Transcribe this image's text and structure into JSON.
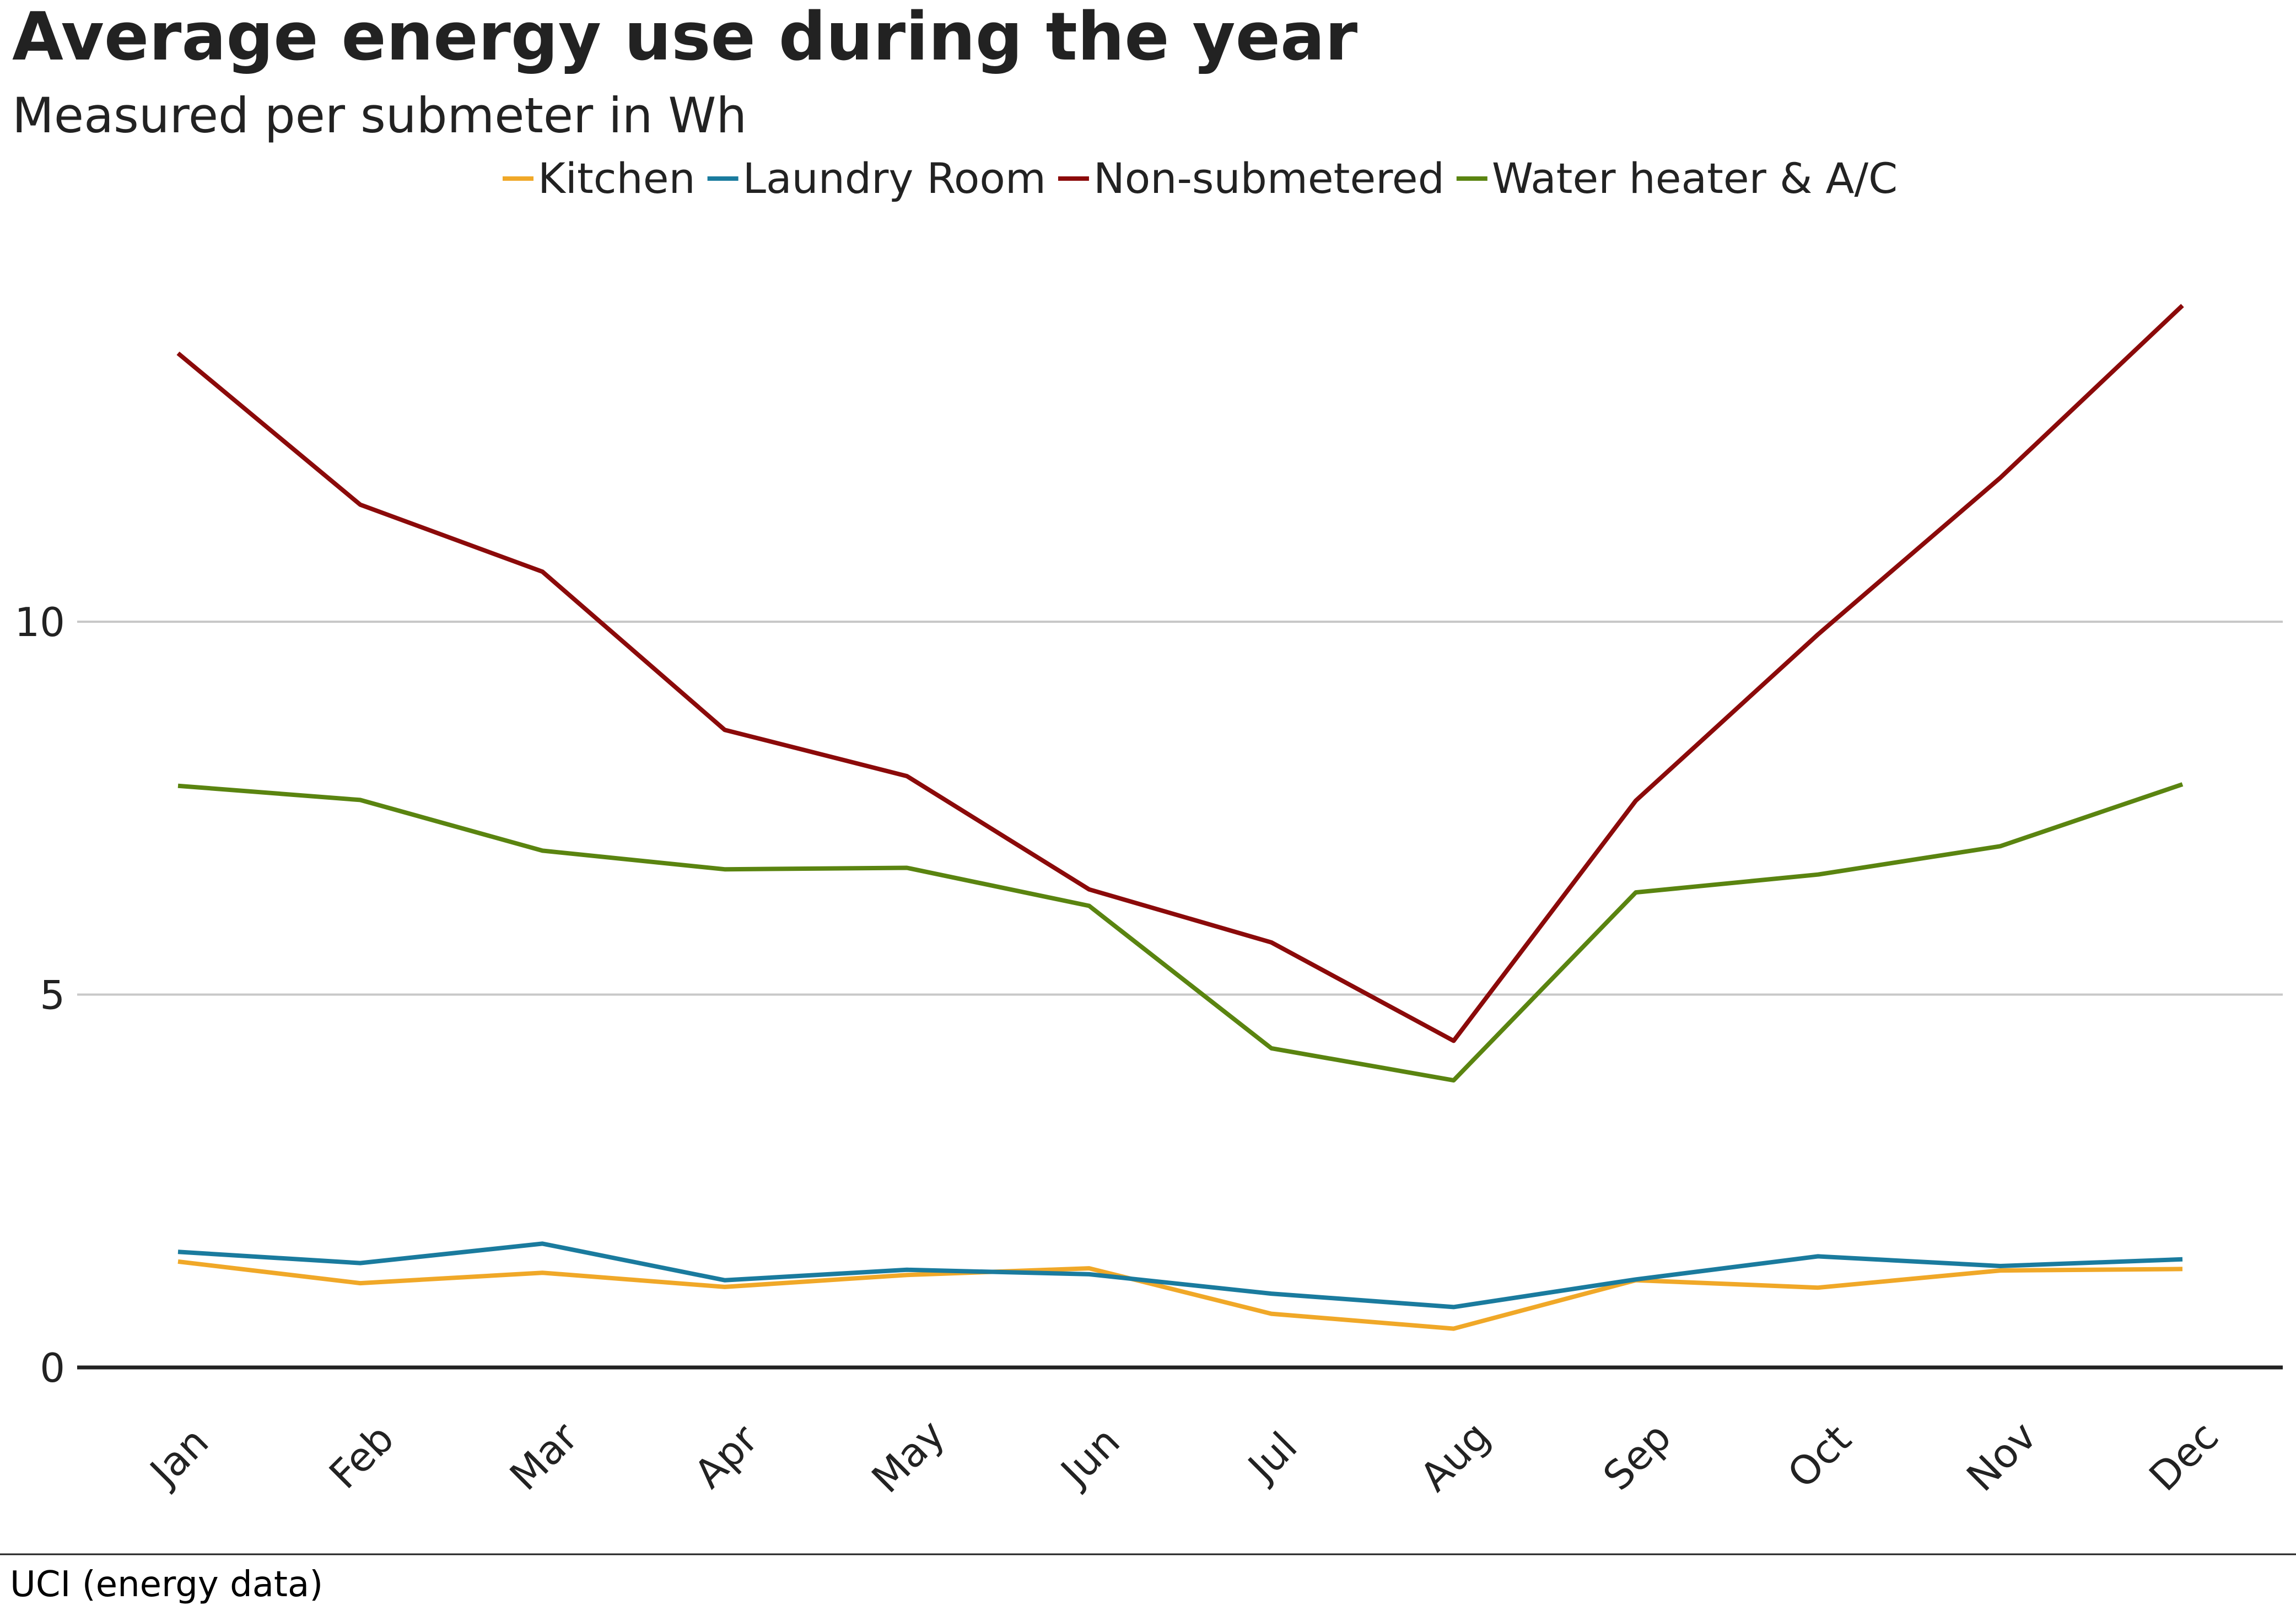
{
  "chart_data": {
    "type": "line",
    "title": "Average energy use during the year",
    "subtitle": "Measured per submeter in Wh",
    "source": "UCI (energy data)",
    "xlabel": "",
    "ylabel": "",
    "ylim": [
      0,
      14.8
    ],
    "yticks": [
      "0",
      "5",
      "10"
    ],
    "grid": true,
    "legend_position": "top",
    "categories": [
      "Jan",
      "Feb",
      "Mar",
      "Apr",
      "May",
      "Jun",
      "Jul",
      "Aug",
      "Sep",
      "Oct",
      "Nov",
      "Dec"
    ],
    "series": [
      {
        "name": "Kitchen",
        "color": "#f0a828",
        "values": [
          1.42,
          1.13,
          1.27,
          1.08,
          1.24,
          1.33,
          0.72,
          0.52,
          1.17,
          1.07,
          1.3,
          1.32
        ]
      },
      {
        "name": "Laundry Room",
        "color": "#1a7b9e",
        "values": [
          1.55,
          1.4,
          1.66,
          1.17,
          1.31,
          1.25,
          0.99,
          0.81,
          1.18,
          1.49,
          1.36,
          1.45
        ]
      },
      {
        "name": "Non-submetered",
        "color": "#8b0a0a",
        "values": [
          13.6,
          11.57,
          10.67,
          8.55,
          7.93,
          6.41,
          5.7,
          4.38,
          7.6,
          9.83,
          11.93,
          14.24
        ]
      },
      {
        "name": "Water heater & A/C",
        "color": "#5a8410",
        "values": [
          7.8,
          7.61,
          6.93,
          6.68,
          6.7,
          6.19,
          4.28,
          3.85,
          6.37,
          6.61,
          6.99,
          7.82
        ]
      }
    ]
  }
}
